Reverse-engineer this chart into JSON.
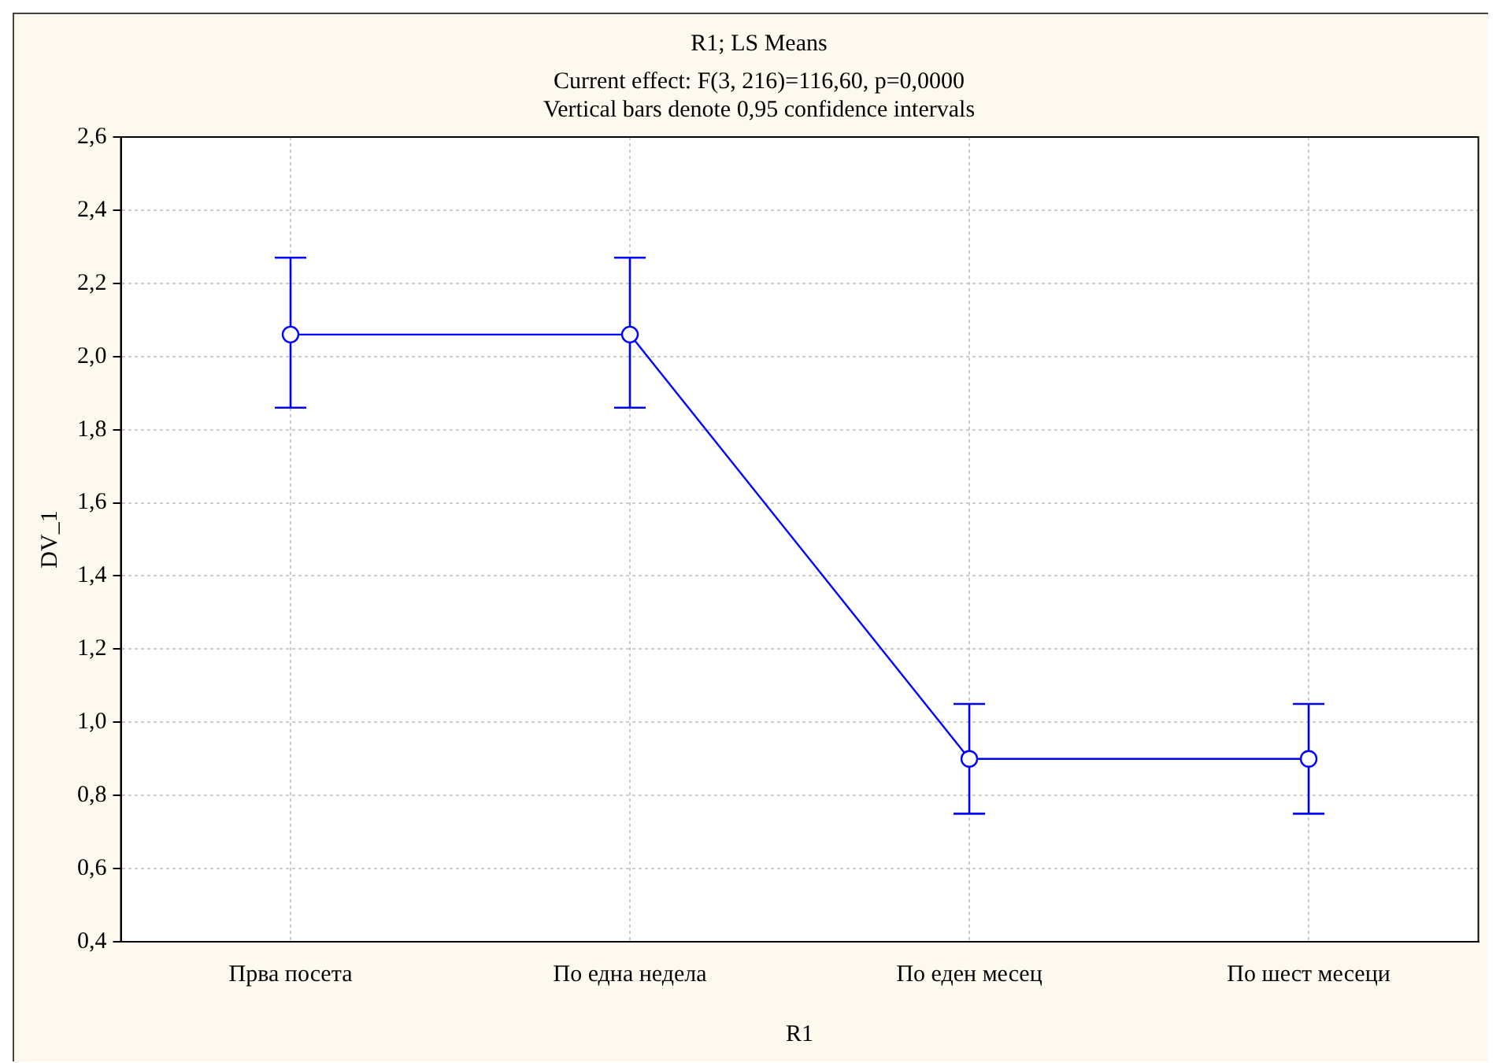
{
  "chart_data": {
    "type": "line",
    "title": "R1; LS Means",
    "subtitle": "Current effect: F(3, 216)=116,60, p=0,0000",
    "annotations": [
      "Vertical bars denote 0,95 confidence intervals"
    ],
    "xlabel": "R1",
    "ylabel": "DV_1",
    "categories": [
      "Прва посета",
      "По една недела",
      "По еден месец",
      "По шест месеци"
    ],
    "series": [
      {
        "color": "#0000ff",
        "values": [
          2.06,
          2.06,
          0.9,
          0.9
        ],
        "errors": [
          [
            1.86,
            2.27
          ],
          [
            1.86,
            2.27
          ],
          [
            0.75,
            1.05
          ],
          [
            0.75,
            1.05
          ]
        ]
      }
    ],
    "ylim": [
      0.4,
      2.6
    ],
    "yticks": [
      {
        "value": 0.4,
        "label": "0,4"
      },
      {
        "value": 0.6,
        "label": "0,6"
      },
      {
        "value": 0.8,
        "label": "0,8"
      },
      {
        "value": 1.0,
        "label": "1,0"
      },
      {
        "value": 1.2,
        "label": "1,2"
      },
      {
        "value": 1.4,
        "label": "1,4"
      },
      {
        "value": 1.6,
        "label": "1,6"
      },
      {
        "value": 1.8,
        "label": "1,8"
      },
      {
        "value": 2.0,
        "label": "2,0"
      },
      {
        "value": 2.2,
        "label": "2,2"
      },
      {
        "value": 2.4,
        "label": "2,4"
      },
      {
        "value": 2.6,
        "label": "2,6"
      }
    ],
    "grid": true,
    "legend": false,
    "marker": "circle",
    "line_style": "solid"
  }
}
